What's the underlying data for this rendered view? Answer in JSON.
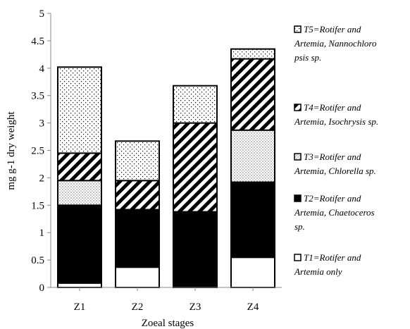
{
  "chart_data": {
    "type": "bar",
    "stacked": true,
    "categories": [
      "Z1",
      "Z2",
      "Z3",
      "Z4"
    ],
    "xlabel": "Zoeal stages",
    "ylabel": "mg g-1 dry weight",
    "ylim": [
      0,
      5
    ],
    "yticks": [
      "0",
      "0.5",
      "1",
      "1.5",
      "2",
      "2.5",
      "3",
      "3.5",
      "4",
      "4.5",
      "5"
    ],
    "grid": false,
    "legend_position": "right",
    "series": [
      {
        "name": "T1",
        "label_lines": [
          "T1=Rotifer and",
          "Artemia only"
        ],
        "pattern": "white",
        "values": [
          0.08,
          0.37,
          0.0,
          0.55
        ]
      },
      {
        "name": "T2",
        "label_lines": [
          "T2=Rotifer and",
          "Artemia, Chaetoceros",
          "sp."
        ],
        "pattern": "black",
        "values": [
          1.42,
          1.05,
          1.38,
          1.37
        ]
      },
      {
        "name": "T3",
        "label_lines": [
          "T3=Rotifer and",
          "Artemia, Chlorella sp."
        ],
        "pattern": "dots",
        "values": [
          0.45,
          0.0,
          0.0,
          0.95
        ]
      },
      {
        "name": "T4",
        "label_lines": [
          "T4=Rotifer and",
          "Artemia, Isochrysis sp."
        ],
        "pattern": "diag",
        "values": [
          0.5,
          0.53,
          1.62,
          1.3
        ]
      },
      {
        "name": "T5",
        "label_lines": [
          "T5=Rotifer and",
          "Artemia, Nannochloro",
          "psis sp."
        ],
        "pattern": "sparse",
        "values": [
          1.57,
          0.72,
          0.68,
          0.18
        ]
      }
    ]
  }
}
